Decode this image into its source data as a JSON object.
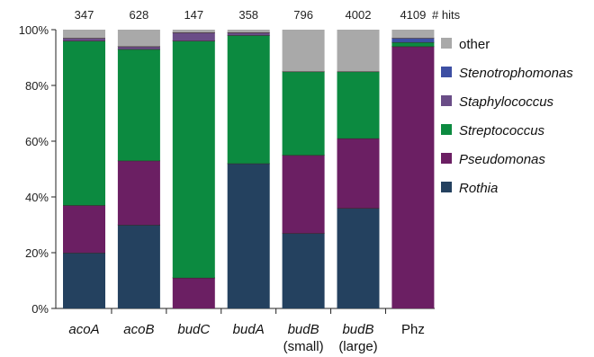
{
  "chart_data": {
    "type": "bar",
    "stacked": true,
    "normalized": true,
    "categories": [
      {
        "name": "acoA",
        "italic": true,
        "sub": ""
      },
      {
        "name": "acoB",
        "italic": true,
        "sub": ""
      },
      {
        "name": "budC",
        "italic": true,
        "sub": ""
      },
      {
        "name": "budA",
        "italic": true,
        "sub": ""
      },
      {
        "name": "budB",
        "italic": true,
        "sub": "(small)"
      },
      {
        "name": "budB",
        "italic": true,
        "sub": "(large)"
      },
      {
        "name": "Phz",
        "italic": false,
        "sub": ""
      }
    ],
    "hits": [
      "347",
      "628",
      "147",
      "358",
      "796",
      "4002",
      "4109"
    ],
    "hits_label": "# hits",
    "series": [
      {
        "name": "Rothia",
        "italic": true,
        "color": "#24415f",
        "values": [
          20,
          30,
          0,
          52,
          27,
          36,
          0
        ]
      },
      {
        "name": "Pseudomonas",
        "italic": true,
        "color": "#6b1f63",
        "values": [
          17,
          23,
          11,
          0,
          28,
          25,
          94
        ]
      },
      {
        "name": "Streptococcus",
        "italic": true,
        "color": "#0c8a40",
        "values": [
          59,
          40,
          85,
          46,
          30,
          24,
          1.5
        ]
      },
      {
        "name": "Staphylococcus",
        "italic": true,
        "color": "#6a4d87",
        "values": [
          1,
          1,
          3,
          1,
          0,
          0,
          0
        ]
      },
      {
        "name": "Stenotrophomonas",
        "italic": true,
        "color": "#3d4fa3",
        "values": [
          0,
          0,
          0,
          0,
          0,
          0,
          1.5
        ]
      },
      {
        "name": "other",
        "italic": false,
        "color": "#a9a9a9",
        "values": [
          3,
          6,
          1,
          1,
          15,
          15,
          3
        ]
      }
    ],
    "legend_order": [
      "other",
      "Stenotrophomonas",
      "Staphylococcus",
      "Streptococcus",
      "Pseudomonas",
      "Rothia"
    ],
    "yticks": [
      "0%",
      "20%",
      "40%",
      "60%",
      "80%",
      "100%"
    ],
    "ylim": [
      0,
      100
    ],
    "legend_position": "right",
    "grid": false
  }
}
